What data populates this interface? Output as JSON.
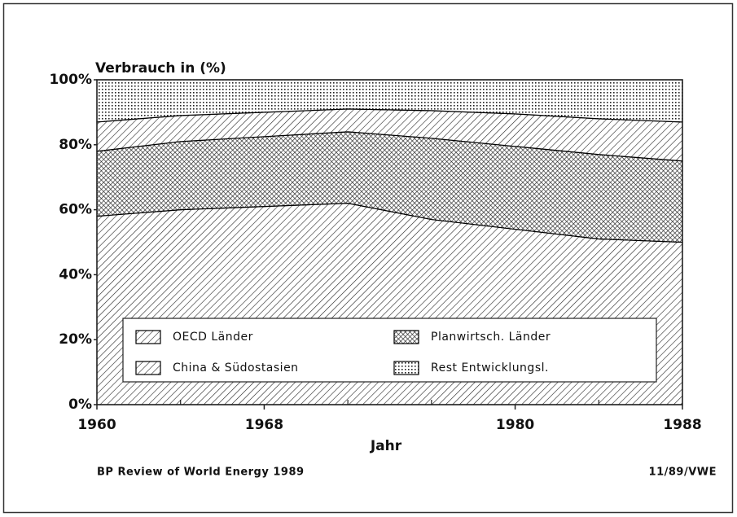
{
  "chart_data": {
    "type": "stacked-area",
    "ylabel": "Verbrauch in (%)",
    "xlabel": "Jahr",
    "source": "BP Review of World Energy 1989",
    "credit": "11/89/VWE",
    "x": [
      1960,
      1964,
      1968,
      1972,
      1976,
      1980,
      1984,
      1988
    ],
    "series": [
      {
        "name": "OECD Länder",
        "color": "#000000",
        "pattern": "hatch",
        "values": [
          58,
          60,
          61,
          62,
          57,
          54,
          51,
          50
        ]
      },
      {
        "name": "Planwirtsch. Länder",
        "color": "#000000",
        "pattern": "crosshatch",
        "values": [
          20,
          21,
          21.5,
          22,
          25,
          25.5,
          26,
          25
        ]
      },
      {
        "name": "China & Südostasien",
        "color": "#000000",
        "pattern": "hatch",
        "values": [
          9,
          8,
          7.5,
          7,
          8.5,
          10,
          11,
          12
        ]
      },
      {
        "name": "Rest Entwicklungsl.",
        "color": "#000000",
        "pattern": "dots",
        "values": [
          13,
          11,
          10,
          9,
          9.5,
          10.5,
          12,
          13
        ]
      }
    ],
    "xlim": [
      1960,
      1988
    ],
    "xticks": [
      1960,
      1968,
      1980,
      1988
    ],
    "xminorticks": [
      1964,
      1972,
      1976,
      1984
    ],
    "ylim": [
      0,
      100
    ],
    "yticks": [
      {
        "value": 0,
        "label": "0%"
      },
      {
        "value": 20,
        "label": "20%"
      },
      {
        "value": 40,
        "label": "40%"
      },
      {
        "value": 60,
        "label": "60%"
      },
      {
        "value": 80,
        "label": "80%"
      },
      {
        "value": 100,
        "label": "100%"
      }
    ],
    "legend": "bottom"
  }
}
